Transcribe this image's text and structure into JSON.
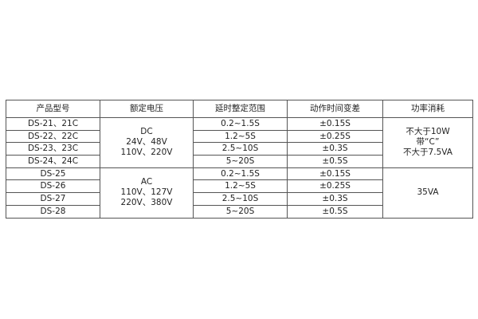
{
  "headers": [
    "产品型号",
    "额定电压",
    "延时整定范围",
    "动作时间变差",
    "功率消耗"
  ],
  "rows": [
    {
      "model": "DS-21、21C",
      "range": "0.2~1.5S",
      "variation": "±0.15S"
    },
    {
      "model": "DS-22、22C",
      "range": "1.2~5S",
      "variation": "±0.25S"
    },
    {
      "model": "DS-23、23C",
      "range": "2.5~10S",
      "variation": "±0.3S"
    },
    {
      "model": "DS-24、24C",
      "range": "5~20S",
      "variation": "±0.5S"
    },
    {
      "model": "DS-25",
      "range": "0.2~1.5S",
      "variation": "±0.15S"
    },
    {
      "model": "DS-26",
      "range": "1.2~5S",
      "variation": "±0.25S"
    },
    {
      "model": "DS-27",
      "range": "2.5~10S",
      "variation": "±0.3S"
    },
    {
      "model": "DS-28",
      "range": "5~20S",
      "variation": "±0.5S"
    }
  ],
  "voltage_groups": [
    {
      "lines": [
        "DC",
        "24V、48V",
        "110V、220V"
      ]
    },
    {
      "lines": [
        "AC",
        "110V、127V",
        "220V、380V"
      ]
    }
  ],
  "power_groups": [
    {
      "lines": [
        "不大于10W",
        "带“C”",
        "不大于7.5VA"
      ]
    },
    {
      "lines": [
        "35VA"
      ]
    }
  ]
}
